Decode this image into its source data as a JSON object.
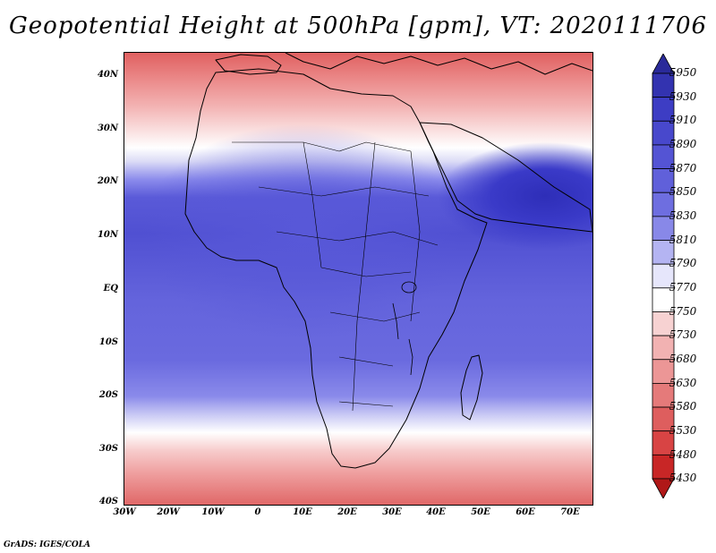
{
  "title": "Geopotential Height at 500hPa [gpm], VT: 2020111706",
  "footer": "GrADS: IGES/COLA",
  "lat_labels": [
    "40N",
    "30N",
    "20N",
    "10N",
    "EQ",
    "10S",
    "20S",
    "30S",
    "40S"
  ],
  "lon_labels": [
    "30W",
    "20W",
    "10W",
    "0",
    "10E",
    "20E",
    "30E",
    "40E",
    "50E",
    "60E",
    "70E"
  ],
  "colorbar": {
    "levels": [
      "5950",
      "5930",
      "5910",
      "5890",
      "5870",
      "5850",
      "5830",
      "5810",
      "5790",
      "5770",
      "5750",
      "5730",
      "5680",
      "5630",
      "5580",
      "5530",
      "5480",
      "5430"
    ],
    "colors": [
      "#2a2a9a",
      "#3333b0",
      "#3d3dc4",
      "#4848cc",
      "#5454d4",
      "#6060da",
      "#6e6ee0",
      "#8888e8",
      "#b4b4f2",
      "#e6e6fb",
      "#ffffff",
      "#f7d2d2",
      "#f2b2b2",
      "#ec9696",
      "#e57a7a",
      "#de5e5e",
      "#d84444",
      "#c82626",
      "#b01818"
    ]
  },
  "colors": {
    "high": "#2e2eb8",
    "low": "#d84444",
    "neutral": "#ffffff"
  }
}
